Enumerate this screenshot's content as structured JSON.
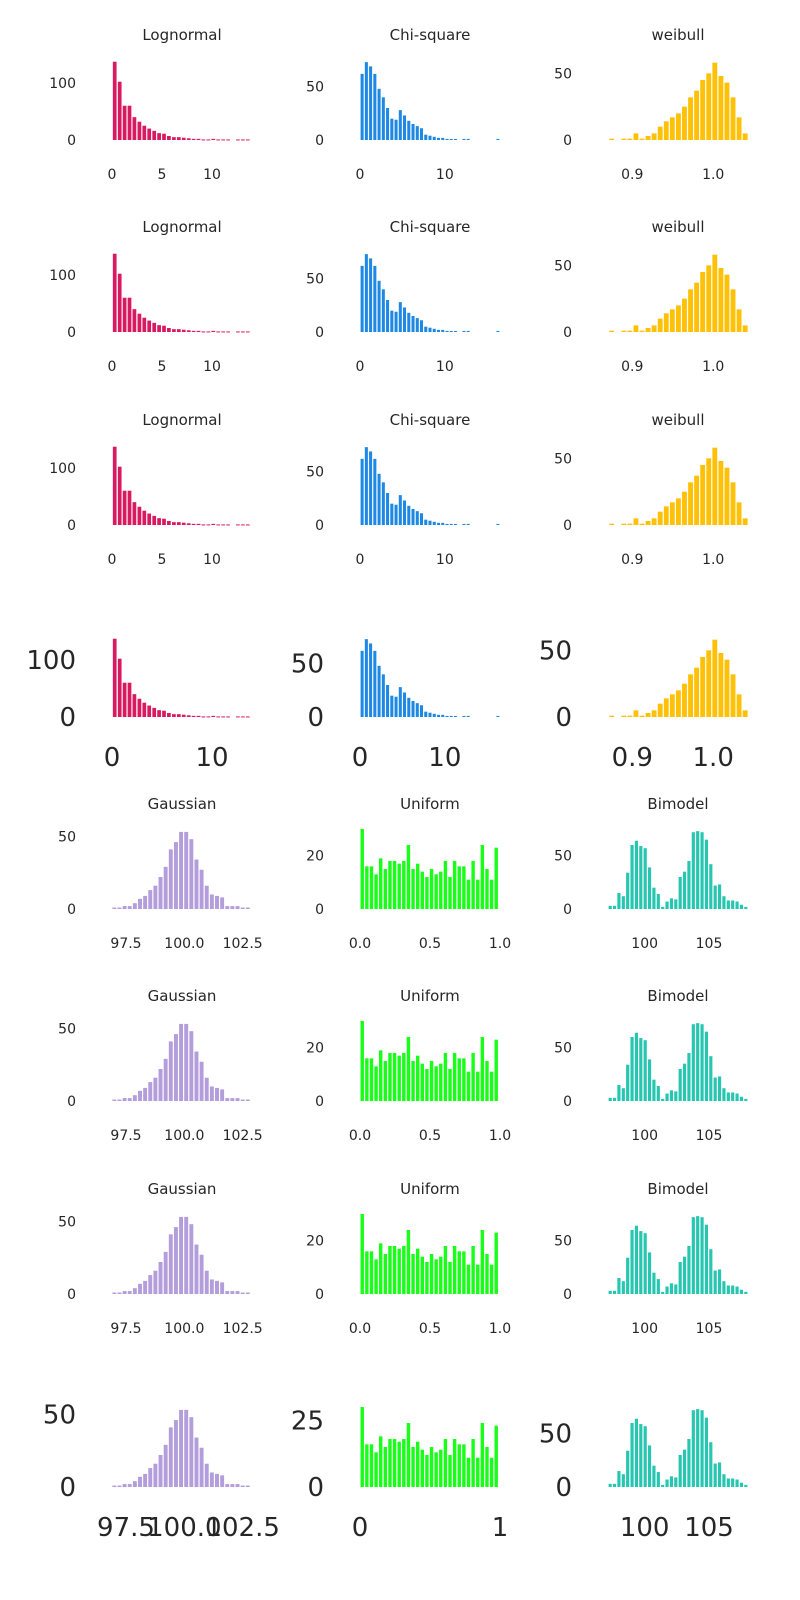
{
  "colors": {
    "lognormal": "#d81b60",
    "chisquare": "#1e88e5",
    "weibull": "#ffc107",
    "gaussian": "#b39ddb",
    "uniform": "#1aff1a",
    "bimodal": "#26c6b0"
  },
  "chart_data": [
    {
      "id": "lognormal",
      "type": "bar",
      "title": "Lognormal",
      "x": [
        0.27,
        0.77,
        1.26,
        1.75,
        2.24,
        2.74,
        3.23,
        3.72,
        4.22,
        4.71,
        5.2,
        5.69,
        6.19,
        6.68,
        7.17,
        7.67,
        8.16,
        8.65,
        9.14,
        9.64,
        10.13,
        10.62,
        11.12,
        11.61,
        12.1,
        12.59,
        13.09,
        13.58
      ],
      "values": [
        137,
        102,
        60,
        60,
        40,
        32,
        25,
        20,
        16,
        12,
        11,
        7,
        5,
        5,
        4,
        3,
        2,
        2,
        1,
        1,
        2,
        1,
        1,
        1,
        0,
        1,
        1,
        1
      ],
      "xlim": [
        0,
        14
      ],
      "ylim": [
        0,
        140
      ],
      "xticks": [
        0,
        5,
        10
      ],
      "yticks": [
        0,
        100
      ],
      "xtick_labels": [
        "0",
        "5",
        "10"
      ],
      "ytick_labels": [
        "0",
        "100"
      ],
      "xtick_labels_large": [
        "0",
        "10"
      ],
      "ytick_labels_large": [
        "0",
        "100"
      ]
    },
    {
      "id": "chisquare",
      "type": "bar",
      "title": "Chi-square",
      "x": [
        0.25,
        0.75,
        1.25,
        1.75,
        2.25,
        2.75,
        3.25,
        3.75,
        4.25,
        4.75,
        5.25,
        5.75,
        6.25,
        6.75,
        7.25,
        7.75,
        8.25,
        8.75,
        9.25,
        9.75,
        10.25,
        10.75,
        11.25,
        11.75,
        12.25,
        12.75,
        13.25,
        13.75,
        14.25,
        14.75,
        15.25,
        15.75,
        16.25
      ],
      "values": [
        62,
        73,
        69,
        62,
        48,
        40,
        30,
        20,
        19,
        28,
        23,
        18,
        15,
        13,
        11,
        5,
        4,
        3,
        2,
        2,
        1,
        1,
        1,
        0,
        1,
        1,
        0,
        0,
        0,
        0,
        0,
        0,
        1
      ],
      "xlim": [
        0,
        16.5
      ],
      "ylim": [
        0,
        75
      ],
      "xticks": [
        0,
        10
      ],
      "yticks": [
        0,
        50
      ],
      "xtick_labels": [
        "0",
        "10"
      ],
      "ytick_labels": [
        "0",
        "50"
      ],
      "xtick_labels_large": [
        "0",
        "10"
      ],
      "ytick_labels_large": [
        "0",
        "50"
      ]
    },
    {
      "id": "weibull",
      "type": "bar",
      "title": "weibull",
      "x": [
        0.8745,
        0.882,
        0.8895,
        0.897,
        0.9045,
        0.912,
        0.9195,
        0.927,
        0.9345,
        0.942,
        0.9495,
        0.957,
        0.9645,
        0.972,
        0.9795,
        0.987,
        0.9945,
        1.002,
        1.0095,
        1.017,
        1.0245,
        1.032,
        1.0395
      ],
      "values": [
        1,
        0,
        1,
        1,
        5,
        1,
        3,
        5,
        10,
        14,
        17,
        20,
        25,
        32,
        37,
        45,
        50,
        58,
        48,
        43,
        32,
        17,
        5
      ],
      "xlim": [
        0.87,
        1.043
      ],
      "ylim": [
        0,
        60
      ],
      "xticks": [
        0.9,
        1.0
      ],
      "yticks": [
        0,
        50
      ],
      "xtick_labels": [
        "0.9",
        "1.0"
      ],
      "ytick_labels": [
        "0",
        "50"
      ],
      "xtick_labels_large": [
        "0.9",
        "1.0"
      ],
      "ytick_labels_large": [
        "0",
        "50"
      ]
    },
    {
      "id": "gaussian",
      "type": "bar",
      "title": "Gaussian",
      "x": [
        97.0,
        97.22,
        97.44,
        97.66,
        97.88,
        98.1,
        98.32,
        98.54,
        98.76,
        98.98,
        99.2,
        99.42,
        99.64,
        99.86,
        100.08,
        100.3,
        100.52,
        100.74,
        100.96,
        101.18,
        101.4,
        101.62,
        101.84,
        102.06,
        102.28,
        102.5,
        102.72
      ],
      "values": [
        1,
        1,
        2,
        2,
        4,
        7,
        9,
        13,
        16,
        22,
        29,
        41,
        46,
        53,
        53,
        48,
        34,
        27,
        16,
        10,
        9,
        8,
        2,
        2,
        2,
        1,
        1
      ],
      "xlim": [
        96.9,
        102.9
      ],
      "ylim": [
        0,
        55
      ],
      "xticks": [
        97.5,
        100.0,
        102.5
      ],
      "yticks": [
        0,
        50
      ],
      "xtick_labels": [
        "97.5",
        "100.0",
        "102.5"
      ],
      "ytick_labels": [
        "0",
        "50"
      ],
      "xtick_labels_large": [
        "97.5",
        "100.0",
        "102.5"
      ],
      "ytick_labels_large": [
        "0",
        "50"
      ]
    },
    {
      "id": "uniform",
      "type": "bar",
      "title": "Uniform",
      "x": [
        0.016,
        0.049,
        0.082,
        0.115,
        0.148,
        0.181,
        0.214,
        0.247,
        0.28,
        0.313,
        0.346,
        0.379,
        0.412,
        0.445,
        0.478,
        0.511,
        0.544,
        0.577,
        0.61,
        0.643,
        0.676,
        0.709,
        0.742,
        0.775,
        0.808,
        0.841,
        0.874,
        0.907,
        0.94,
        0.973
      ],
      "values": [
        30,
        16,
        16,
        13,
        19,
        15,
        18,
        18,
        17,
        18,
        24,
        15,
        17,
        14,
        12,
        15,
        13,
        14,
        18,
        12,
        18,
        16,
        16,
        11,
        18,
        11,
        24,
        15,
        11,
        23
      ],
      "xlim": [
        0,
        1.0
      ],
      "ylim": [
        0,
        30
      ],
      "xticks": [
        0.0,
        0.5,
        1.0
      ],
      "yticks": [
        0,
        20
      ],
      "xtick_labels": [
        "0.0",
        "0.5",
        "1.0"
      ],
      "ytick_labels": [
        "0",
        "20"
      ],
      "xtick_labels_large": [
        "0",
        "1"
      ],
      "ytick_labels_large": [
        "0",
        "25"
      ]
    },
    {
      "id": "bimodal",
      "type": "bar",
      "title": "Bimodel",
      "x": [
        97.32,
        97.66,
        98.0,
        98.34,
        98.68,
        99.02,
        99.36,
        99.7,
        100.04,
        100.38,
        100.72,
        101.06,
        101.4,
        101.74,
        102.08,
        102.42,
        102.76,
        103.1,
        103.44,
        103.78,
        104.12,
        104.46,
        104.8,
        105.14,
        105.48,
        105.82,
        106.16,
        106.5,
        106.84,
        107.18,
        107.52,
        107.86
      ],
      "values": [
        3,
        3,
        15,
        12,
        34,
        60,
        64,
        59,
        57,
        39,
        20,
        14,
        2,
        7,
        10,
        9,
        30,
        35,
        45,
        72,
        73,
        72,
        65,
        42,
        22,
        23,
        12,
        8,
        8,
        7,
        4,
        2
      ],
      "xlim": [
        97.15,
        108.03
      ],
      "ylim": [
        0,
        75
      ],
      "xticks": [
        100,
        105
      ],
      "yticks": [
        0,
        50
      ],
      "xtick_labels": [
        "100",
        "105"
      ],
      "ytick_labels": [
        "0",
        "50"
      ],
      "xtick_labels_large": [
        "100",
        "105"
      ],
      "ytick_labels_large": [
        "0",
        "50"
      ]
    }
  ]
}
